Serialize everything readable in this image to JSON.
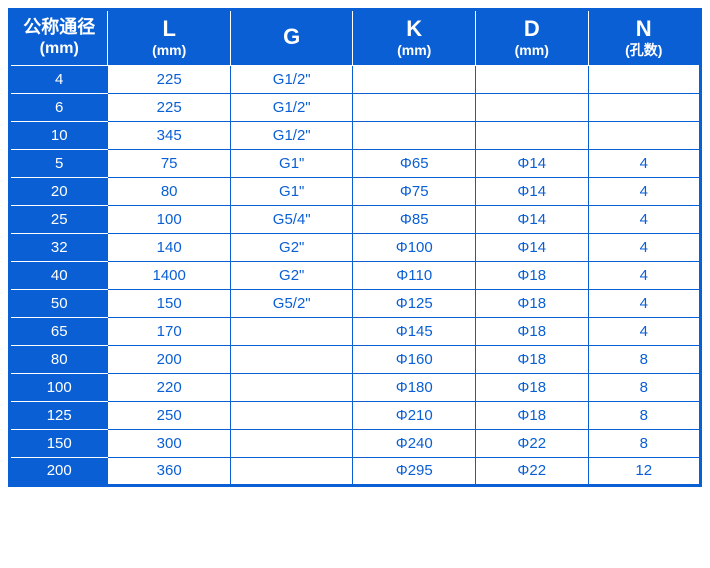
{
  "table": {
    "type": "table",
    "accent_color": "#0a5fd4",
    "background_color": "#ffffff",
    "border_width_outer": 3,
    "border_width_inner": 1,
    "header_font_size_main": 22,
    "header_font_size_sub": 14,
    "body_font_size": 15,
    "columns": [
      {
        "main": "公称通径",
        "sub": "(mm)"
      },
      {
        "main": "L",
        "sub": "(mm)"
      },
      {
        "main": "G",
        "sub": ""
      },
      {
        "main": "K",
        "sub": "(mm)"
      },
      {
        "main": "D",
        "sub": "(mm)"
      },
      {
        "main": "N",
        "sub": "(孔数)"
      }
    ],
    "rows": [
      [
        "4",
        "225",
        "G1/2\"",
        "",
        "",
        ""
      ],
      [
        "6",
        "225",
        "G1/2\"",
        "",
        "",
        ""
      ],
      [
        "10",
        "345",
        "G1/2\"",
        "",
        "",
        ""
      ],
      [
        "5",
        "75",
        "G1\"",
        "Φ65",
        "Φ14",
        "4"
      ],
      [
        "20",
        "80",
        "G1\"",
        "Φ75",
        "Φ14",
        "4"
      ],
      [
        "25",
        "100",
        "G5/4\"",
        "Φ85",
        "Φ14",
        "4"
      ],
      [
        "32",
        "140",
        "G2\"",
        "Φ100",
        "Φ14",
        "4"
      ],
      [
        "40",
        "1400",
        "G2\"",
        "Φ110",
        "Φ18",
        "4"
      ],
      [
        "50",
        "150",
        "G5/2\"",
        "Φ125",
        "Φ18",
        "4"
      ],
      [
        "65",
        "170",
        "",
        "Φ145",
        "Φ18",
        "4"
      ],
      [
        "80",
        "200",
        "",
        "Φ160",
        "Φ18",
        "8"
      ],
      [
        "100",
        "220",
        "",
        "Φ180",
        "Φ18",
        "8"
      ],
      [
        "125",
        "250",
        "",
        "Φ210",
        "Φ18",
        "8"
      ],
      [
        "150",
        "300",
        "",
        "Φ240",
        "Φ22",
        "8"
      ],
      [
        "200",
        "360",
        "",
        "Φ295",
        "Φ22",
        "12"
      ]
    ]
  }
}
